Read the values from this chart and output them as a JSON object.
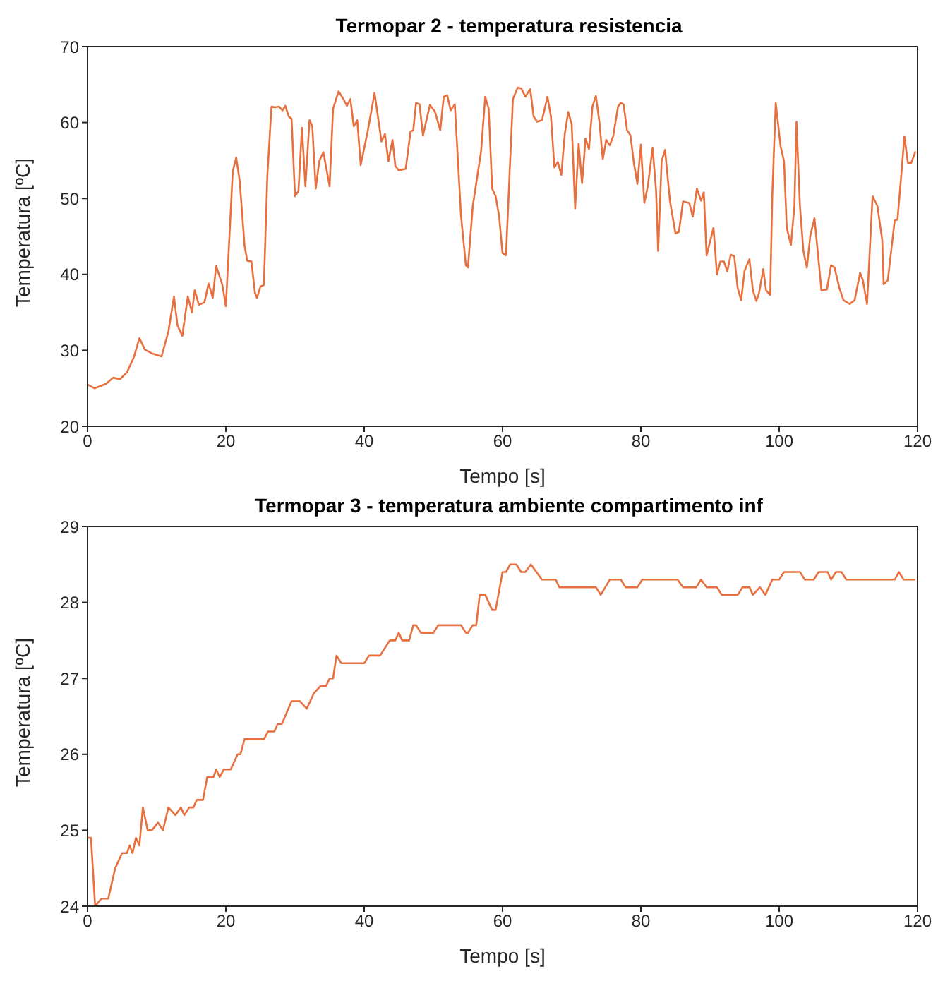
{
  "chart_data": [
    {
      "type": "line",
      "title": "Termopar 2 - temperatura resistencia",
      "xlabel": "Tempo [s]",
      "ylabel": "Temperatura [ºC]",
      "xlim": [
        0,
        120
      ],
      "xticks": [
        0,
        20,
        40,
        60,
        80,
        100,
        120
      ],
      "ylim": [
        20,
        70
      ],
      "yticks": [
        20,
        30,
        40,
        50,
        60,
        70
      ],
      "series": [
        {
          "color": "#e8703e",
          "x": [
            0,
            1,
            2.7,
            3.7,
            4.7,
            5.7,
            6.7,
            7.5,
            8.3,
            9.3,
            10.7,
            11.7,
            12.5,
            13,
            13.7,
            14.5,
            15.1,
            15.5,
            16.1,
            16.9,
            17.5,
            18.1,
            18.6,
            19.5,
            20,
            21,
            21.5,
            22,
            22.7,
            23.1,
            23.7,
            24.2,
            24.5,
            25,
            25.5,
            26,
            26.6,
            27.1,
            27.7,
            28.2,
            28.6,
            29.1,
            29.5,
            30,
            30.5,
            31,
            31.5,
            32.1,
            32.5,
            33,
            33.5,
            34.1,
            35,
            35.5,
            36.3,
            37,
            37.5,
            38,
            38.5,
            39,
            39.5,
            40.5,
            41.5,
            42.5,
            43,
            43.5,
            44.1,
            44.5,
            45,
            46,
            46.7,
            47.1,
            47.5,
            48,
            48.5,
            49.5,
            50.2,
            51,
            51.5,
            52,
            52.5,
            53.1,
            54,
            54.7,
            55,
            55.7,
            56.9,
            57.5,
            58,
            58.5,
            59,
            59.5,
            60,
            60.5,
            61.5,
            62.2,
            62.7,
            63.3,
            64,
            64.5,
            65,
            65.7,
            66.5,
            67,
            67.5,
            68,
            68.5,
            69,
            69.5,
            70,
            70.5,
            71,
            71.5,
            72,
            72.5,
            73,
            73.5,
            74,
            74.5,
            75,
            75.5,
            76,
            76.7,
            77.1,
            77.5,
            78,
            78.5,
            79,
            79.5,
            80,
            80.5,
            81,
            81.7,
            82.2,
            82.5,
            83,
            83.5,
            84.2,
            85,
            85.5,
            86.1,
            87,
            87.5,
            88.1,
            88.7,
            89.1,
            89.5,
            90.5,
            91,
            91.5,
            92,
            92.5,
            93,
            93.5,
            94,
            94.5,
            95,
            95.7,
            96.2,
            96.7,
            97.1,
            97.7,
            98.1,
            98.7,
            99,
            99.5,
            100.2,
            100.7,
            101.1,
            101.7,
            102.2,
            102.5,
            103,
            103.5,
            104,
            104.5,
            105.1,
            105.7,
            106.1,
            106.9,
            107.5,
            108,
            108.7,
            109.3,
            110.2,
            110.9,
            111.7,
            112.1,
            112.7,
            113.5,
            114.2,
            114.9,
            115.1,
            115.7,
            116.7,
            117.1,
            117.7,
            118.1,
            118.6,
            119.1,
            119.7
          ],
          "values": [
            25.5,
            25,
            25.6,
            26.4,
            26.2,
            27.1,
            29.1,
            31.6,
            30.1,
            29.6,
            29.2,
            32.5,
            37.1,
            33.3,
            31.9,
            37.1,
            35,
            37.9,
            36,
            36.3,
            38.8,
            36.9,
            41.1,
            38.6,
            35.8,
            53.6,
            55.4,
            52.3,
            43.8,
            41.8,
            41.7,
            37.6,
            36.9,
            38.4,
            38.6,
            53,
            62.1,
            62,
            62.1,
            61.6,
            62.2,
            60.8,
            60.5,
            50.3,
            51,
            59.3,
            51.6,
            60.3,
            59.5,
            51.3,
            54.9,
            56.1,
            51.6,
            61.8,
            64.1,
            63.1,
            62.2,
            63.1,
            59.5,
            60.3,
            54.4,
            58.8,
            63.9,
            57.5,
            58.5,
            54.9,
            57.7,
            54.3,
            53.7,
            53.9,
            58.8,
            59,
            62.6,
            62.4,
            58.3,
            62.3,
            61.5,
            59,
            63.4,
            63.6,
            61.6,
            62.4,
            47.7,
            41.2,
            40.9,
            49,
            56.2,
            63.4,
            61.8,
            51.3,
            50.3,
            47.7,
            42.8,
            42.5,
            63.1,
            64.6,
            64.5,
            63.4,
            64.4,
            60.8,
            60.1,
            60.3,
            63.4,
            60.8,
            54.1,
            54.8,
            53.1,
            58.5,
            61.4,
            59.8,
            48.7,
            57.2,
            52,
            57.9,
            56.5,
            62.1,
            63.5,
            60.1,
            55.2,
            57.7,
            57,
            58.2,
            62.1,
            62.6,
            62.4,
            59,
            58.3,
            54.6,
            51.9,
            57.1,
            49.4,
            51.6,
            56.7,
            51,
            43.1,
            54.9,
            56.4,
            49.7,
            45.4,
            45.6,
            49.6,
            49.4,
            47.6,
            51.3,
            49.7,
            50.8,
            42.5,
            46.1,
            40,
            41.7,
            41.7,
            40.4,
            42.6,
            42.4,
            38.2,
            36.6,
            40.5,
            42,
            37.9,
            36.5,
            37.6,
            40.7,
            37.9,
            37.3,
            50.3,
            62.6,
            56.9,
            54.9,
            46.1,
            43.9,
            49,
            60.1,
            49,
            43.1,
            40.9,
            45.1,
            47.4,
            41.8,
            37.9,
            38,
            41.2,
            40.9,
            38.2,
            36.6,
            36.1,
            36.6,
            40.2,
            39.2,
            36.1,
            50.3,
            49,
            44.5,
            38.7,
            39.2,
            47.1,
            47.2,
            53.6,
            58.2,
            54.7,
            54.7,
            56.2
          ]
        }
      ]
    },
    {
      "type": "line",
      "title": "Termopar 3 - temperatura ambiente compartimento inf",
      "xlabel": "Tempo [s]",
      "ylabel": "Temperatura [ºC]",
      "xlim": [
        0,
        120
      ],
      "xticks": [
        0,
        20,
        40,
        60,
        80,
        100,
        120
      ],
      "ylim": [
        24,
        29
      ],
      "yticks": [
        24,
        25,
        26,
        27,
        28,
        29
      ],
      "series": [
        {
          "color": "#e8703e",
          "x": [
            0,
            0.5,
            1.1,
            2,
            3,
            4,
            5,
            5.7,
            6.1,
            6.5,
            7,
            7.5,
            8,
            8.7,
            9.3,
            10.2,
            10.9,
            11.7,
            12.7,
            13.5,
            14,
            14.7,
            15.3,
            15.8,
            16.7,
            17.3,
            18.2,
            18.6,
            19.1,
            19.7,
            20.7,
            21.7,
            22.1,
            22.7,
            25.5,
            26.1,
            27,
            27.5,
            28.1,
            29.5,
            30.7,
            31.7,
            32.7,
            33.7,
            34.5,
            35,
            35.5,
            36,
            36.7,
            40,
            40.7,
            42.3,
            43.7,
            44.5,
            45,
            45.5,
            46.5,
            47.1,
            47.5,
            48.2,
            50,
            50.7,
            54,
            54.7,
            55,
            55.7,
            56.2,
            56.7,
            57.5,
            58.5,
            59,
            60,
            60.5,
            61.1,
            62,
            62.7,
            63.3,
            64.1,
            64.9,
            65.7,
            67.7,
            68.2,
            73.5,
            74.2,
            75.5,
            77.1,
            77.8,
            79.5,
            80.2,
            85.3,
            86.1,
            88,
            88.7,
            89.5,
            91,
            91.7,
            94,
            94.7,
            95.7,
            96.2,
            97.2,
            98,
            99,
            100,
            100.7,
            103,
            103.7,
            105,
            105.7,
            107,
            107.5,
            108.2,
            109,
            109.7,
            116.7,
            117.3,
            118,
            119.7
          ],
          "values": [
            24.9,
            24.9,
            24,
            24.1,
            24.1,
            24.5,
            24.7,
            24.7,
            24.8,
            24.7,
            24.9,
            24.8,
            25.3,
            25,
            25,
            25.1,
            25,
            25.3,
            25.2,
            25.3,
            25.2,
            25.3,
            25.3,
            25.4,
            25.4,
            25.7,
            25.7,
            25.8,
            25.7,
            25.8,
            25.8,
            26,
            26,
            26.2,
            26.2,
            26.3,
            26.3,
            26.4,
            26.4,
            26.7,
            26.7,
            26.6,
            26.8,
            26.9,
            26.9,
            27,
            27,
            27.3,
            27.2,
            27.2,
            27.3,
            27.3,
            27.5,
            27.5,
            27.6,
            27.5,
            27.5,
            27.7,
            27.7,
            27.6,
            27.6,
            27.7,
            27.7,
            27.6,
            27.6,
            27.7,
            27.7,
            28.1,
            28.1,
            27.9,
            27.9,
            28.4,
            28.4,
            28.5,
            28.5,
            28.4,
            28.4,
            28.5,
            28.4,
            28.3,
            28.3,
            28.2,
            28.2,
            28.1,
            28.3,
            28.3,
            28.2,
            28.2,
            28.3,
            28.3,
            28.2,
            28.2,
            28.3,
            28.2,
            28.2,
            28.1,
            28.1,
            28.2,
            28.2,
            28.1,
            28.2,
            28.1,
            28.3,
            28.3,
            28.4,
            28.4,
            28.3,
            28.3,
            28.4,
            28.4,
            28.3,
            28.4,
            28.4,
            28.3,
            28.3,
            28.4,
            28.3,
            28.3
          ]
        }
      ]
    }
  ]
}
